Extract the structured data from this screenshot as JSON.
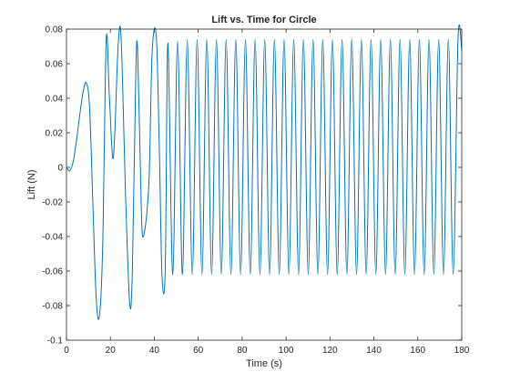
{
  "chart_data": {
    "type": "line",
    "title": "Lift vs. Time for Circle",
    "xlabel": "Time (s)",
    "ylabel": "Lift (N)",
    "xlim": [
      0,
      180
    ],
    "ylim": [
      -0.1,
      0.08
    ],
    "xticks": [
      "0",
      "20",
      "40",
      "60",
      "80",
      "100",
      "120",
      "140",
      "160",
      "180"
    ],
    "yticks": [
      "-0.1",
      "-0.08",
      "-0.06",
      "-0.04",
      "-0.02",
      "0",
      "0.02",
      "0.04",
      "0.06",
      "0.08"
    ],
    "grid": false,
    "color": "#0072BD",
    "series": [
      {
        "x": [
          0,
          1.5,
          3,
          4.5,
          6,
          7.5,
          9,
          10.5,
          12,
          13.5,
          15,
          16.5,
          18.1,
          19.5,
          21,
          22,
          23.5,
          24.9,
          27,
          28.8,
          30,
          31.5,
          32.4,
          34,
          35,
          37.5,
          39,
          40.9,
          42.3,
          43.5,
          45,
          46.2,
          48.4,
          50.6,
          52.8,
          55,
          57.3,
          59.5,
          61.7,
          63.9,
          66.1,
          68.3,
          70.5,
          72.7,
          74.9,
          77.1,
          79.3,
          81.5,
          83.7,
          85.9,
          88.1,
          90.3,
          92.5,
          94.7,
          96.9,
          99.1,
          101.3,
          103.5,
          105.7,
          107.9,
          110.1,
          112.3,
          114.5,
          116.7,
          118.9,
          121.1,
          123.3,
          125.5,
          127.7,
          129.9,
          132.1,
          134.3,
          136.5,
          138.7,
          140.9,
          143.1,
          145.3,
          147.5,
          149.7,
          151.9,
          154.1,
          156.3,
          158.5,
          160.7,
          162.9,
          165.1,
          167.3,
          169.5,
          171.7,
          173.9,
          176.1,
          178.3,
          180
        ],
        "y": [
          0,
          -0.002,
          0.003,
          0.015,
          0.03,
          0.043,
          0.049,
          0.035,
          -0.02,
          -0.075,
          -0.086,
          -0.045,
          0.074,
          0.042,
          0.006,
          0.02,
          0.07,
          0.074,
          -0.02,
          -0.079,
          -0.06,
          0.05,
          0.068,
          -0.02,
          -0.04,
          -0.01,
          0.066,
          0.076,
          0.01,
          -0.063,
          -0.058,
          0.072,
          -0.062,
          0.073,
          -0.062,
          0.074,
          -0.062,
          0.074,
          -0.062,
          0.074,
          -0.062,
          0.074,
          -0.062,
          0.074,
          -0.062,
          0.074,
          -0.062,
          0.074,
          -0.062,
          0.074,
          -0.062,
          0.074,
          -0.062,
          0.074,
          -0.062,
          0.074,
          -0.062,
          0.074,
          -0.062,
          0.074,
          -0.062,
          0.074,
          -0.062,
          0.074,
          -0.062,
          0.074,
          -0.062,
          0.074,
          -0.062,
          0.074,
          -0.062,
          0.074,
          -0.062,
          0.074,
          -0.062,
          0.074,
          -0.062,
          0.074,
          -0.062,
          0.074,
          -0.062,
          0.074,
          -0.062,
          0.074,
          -0.062,
          0.074,
          -0.062,
          0.074,
          -0.062,
          0.074,
          -0.062,
          0.074,
          0.068
        ]
      }
    ]
  }
}
